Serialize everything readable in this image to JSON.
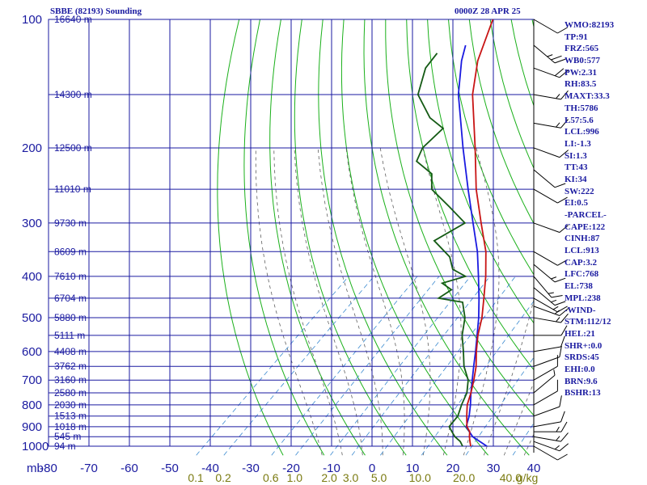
{
  "header": {
    "station_title": "SBBE (82193) Sounding",
    "datetime": "0000Z 28 APR 25"
  },
  "indices": [
    "WMO:82193",
    "TP:91",
    "FRZ:565",
    "WB0:577",
    "PW:2.31",
    "RH:83.5",
    "MAXT:33.3",
    "TH:5786",
    "L57:5.6",
    "LCL:996",
    "LI:-1.3",
    "SI:1.3",
    "TT:43",
    "KI:34",
    "SW:222",
    "EI:0.5",
    "-PARCEL-",
    "CAPE:122",
    "CINH:87",
    "LCL:913",
    "CAP:3.2",
    "LFC:768",
    "EL:738",
    "MPL:238",
    "-WIND-",
    "STM:112/12",
    "HEL:21",
    "SHR+:0.0",
    "SRDS:45",
    "EHI:0.0",
    "BRN:9.6",
    "BSHR:13"
  ],
  "colors": {
    "grid": "#1a1aa0",
    "dry_adiabat": "#1ab01a",
    "moist_adiabat": "#606060",
    "mixing_ratio": "#3a8ad0",
    "temperature": "#c81414",
    "dewpoint": "#145a14",
    "parcel": "#1a1ae0",
    "axis_text": "#1a1aa0",
    "mixing_text": "#7a7a10",
    "wind_barb": "#000000"
  },
  "chart_data": {
    "type": "skew-t",
    "pressure_ticks": [
      100,
      200,
      300,
      400,
      500,
      600,
      700,
      800,
      900,
      1000
    ],
    "pressure_unit_label": "mb",
    "temperature_ticks": [
      -80,
      -70,
      -60,
      -50,
      -40,
      -30,
      -20,
      -10,
      0,
      10,
      20,
      30,
      40
    ],
    "height_labels": [
      {
        "p": 100,
        "label": "16640 m"
      },
      {
        "p": 150,
        "label": "14300 m"
      },
      {
        "p": 200,
        "label": "12500 m"
      },
      {
        "p": 250,
        "label": "11010 m"
      },
      {
        "p": 300,
        "label": "9730 m"
      },
      {
        "p": 350,
        "label": "8609 m"
      },
      {
        "p": 400,
        "label": "7610 m"
      },
      {
        "p": 450,
        "label": "6704 m"
      },
      {
        "p": 500,
        "label": "5880 m"
      },
      {
        "p": 550,
        "label": "5111 m"
      },
      {
        "p": 600,
        "label": "4408 m"
      },
      {
        "p": 650,
        "label": "3762 m"
      },
      {
        "p": 700,
        "label": "3160 m"
      },
      {
        "p": 750,
        "label": "2580 m"
      },
      {
        "p": 800,
        "label": "2030 m"
      },
      {
        "p": 850,
        "label": "1513 m"
      },
      {
        "p": 900,
        "label": "1018 m"
      },
      {
        "p": 950,
        "label": "545 m"
      },
      {
        "p": 1000,
        "label": "94 m"
      }
    ],
    "mixing_ratio_labels": [
      {
        "w": 0.1,
        "label": "0.1"
      },
      {
        "w": 0.2,
        "label": "0.2"
      },
      {
        "w": 0.6,
        "label": "0.6"
      },
      {
        "w": 1.0,
        "label": "1.0"
      },
      {
        "w": 2.0,
        "label": "2.0"
      },
      {
        "w": 3.0,
        "label": "3.0"
      },
      {
        "w": 5.0,
        "label": "5.0"
      },
      {
        "w": 10.0,
        "label": "10.0"
      },
      {
        "w": 20.0,
        "label": "20.0"
      },
      {
        "w": 40.0,
        "label": "40.0"
      }
    ],
    "mixing_ratio_unit": "g/kg",
    "temperature_profile": [
      {
        "p": 1000,
        "t": 24.4
      },
      {
        "p": 975,
        "t": 23.0
      },
      {
        "p": 950,
        "t": 21.6
      },
      {
        "p": 925,
        "t": 20.4
      },
      {
        "p": 900,
        "t": 18.4
      },
      {
        "p": 875,
        "t": 17.0
      },
      {
        "p": 850,
        "t": 15.6
      },
      {
        "p": 800,
        "t": 12.8
      },
      {
        "p": 750,
        "t": 10.6
      },
      {
        "p": 700,
        "t": 8.0
      },
      {
        "p": 650,
        "t": 5.0
      },
      {
        "p": 600,
        "t": 1.2
      },
      {
        "p": 550,
        "t": -2.6
      },
      {
        "p": 500,
        "t": -6.2
      },
      {
        "p": 450,
        "t": -10.8
      },
      {
        "p": 400,
        "t": -16.0
      },
      {
        "p": 350,
        "t": -22.4
      },
      {
        "p": 300,
        "t": -31.0
      },
      {
        "p": 250,
        "t": -41.0
      },
      {
        "p": 200,
        "t": -52.0
      },
      {
        "p": 150,
        "t": -66.5
      },
      {
        "p": 125,
        "t": -74.0
      },
      {
        "p": 100,
        "t": -81.0
      }
    ],
    "dewpoint_profile": [
      {
        "p": 1000,
        "t": 22.4
      },
      {
        "p": 975,
        "t": 20.6
      },
      {
        "p": 950,
        "t": 18.0
      },
      {
        "p": 925,
        "t": 16.0
      },
      {
        "p": 900,
        "t": 14.0
      },
      {
        "p": 850,
        "t": 13.4
      },
      {
        "p": 800,
        "t": 11.4
      },
      {
        "p": 750,
        "t": 9.6
      },
      {
        "p": 700,
        "t": 6.6
      },
      {
        "p": 650,
        "t": 2.0
      },
      {
        "p": 600,
        "t": -2.0
      },
      {
        "p": 550,
        "t": -6.5
      },
      {
        "p": 500,
        "t": -10.4
      },
      {
        "p": 460,
        "t": -15.0
      },
      {
        "p": 450,
        "t": -22.0
      },
      {
        "p": 430,
        "t": -21.0
      },
      {
        "p": 415,
        "t": -25.0
      },
      {
        "p": 400,
        "t": -21.0
      },
      {
        "p": 385,
        "t": -26.0
      },
      {
        "p": 360,
        "t": -30.0
      },
      {
        "p": 330,
        "t": -38.0
      },
      {
        "p": 300,
        "t": -35.0
      },
      {
        "p": 275,
        "t": -43.0
      },
      {
        "p": 250,
        "t": -52.0
      },
      {
        "p": 230,
        "t": -56.0
      },
      {
        "p": 215,
        "t": -63.0
      },
      {
        "p": 200,
        "t": -65.0
      },
      {
        "p": 180,
        "t": -65.0
      },
      {
        "p": 170,
        "t": -71.0
      },
      {
        "p": 150,
        "t": -80.0
      },
      {
        "p": 130,
        "t": -85.0
      },
      {
        "p": 120,
        "t": -86.0
      }
    ],
    "parcel_profile": [
      {
        "p": 1000,
        "t": 28.4
      },
      {
        "p": 950,
        "t": 22.4
      },
      {
        "p": 900,
        "t": 18.2
      },
      {
        "p": 850,
        "t": 16.2
      },
      {
        "p": 800,
        "t": 13.6
      },
      {
        "p": 750,
        "t": 10.6
      },
      {
        "p": 700,
        "t": 7.6
      },
      {
        "p": 650,
        "t": 4.4
      },
      {
        "p": 600,
        "t": 1.0
      },
      {
        "p": 550,
        "t": -2.8
      },
      {
        "p": 500,
        "t": -7.0
      },
      {
        "p": 450,
        "t": -12.0
      },
      {
        "p": 400,
        "t": -17.8
      },
      {
        "p": 350,
        "t": -24.5
      },
      {
        "p": 300,
        "t": -33.0
      },
      {
        "p": 250,
        "t": -43.0
      },
      {
        "p": 200,
        "t": -55.0
      },
      {
        "p": 150,
        "t": -70.0
      },
      {
        "p": 125,
        "t": -78.0
      },
      {
        "p": 115,
        "t": -81.0
      }
    ],
    "wind_profile": [
      {
        "p": 1000,
        "dir": 120,
        "spd": 10
      },
      {
        "p": 975,
        "dir": 110,
        "spd": 15
      },
      {
        "p": 950,
        "dir": 100,
        "spd": 15
      },
      {
        "p": 925,
        "dir": 90,
        "spd": 15
      },
      {
        "p": 900,
        "dir": 80,
        "spd": 10
      },
      {
        "p": 850,
        "dir": 70,
        "spd": 10
      },
      {
        "p": 800,
        "dir": 60,
        "spd": 10
      },
      {
        "p": 750,
        "dir": 50,
        "spd": 5
      },
      {
        "p": 700,
        "dir": 60,
        "spd": 10
      },
      {
        "p": 650,
        "dir": 70,
        "spd": 10
      },
      {
        "p": 600,
        "dir": 80,
        "spd": 10
      },
      {
        "p": 550,
        "dir": 90,
        "spd": 10
      },
      {
        "p": 500,
        "dir": 100,
        "spd": 15
      },
      {
        "p": 470,
        "dir": 110,
        "spd": 15
      },
      {
        "p": 450,
        "dir": 120,
        "spd": 15
      },
      {
        "p": 425,
        "dir": 130,
        "spd": 15
      },
      {
        "p": 400,
        "dir": 140,
        "spd": 15
      },
      {
        "p": 375,
        "dir": 130,
        "spd": 15
      },
      {
        "p": 350,
        "dir": 120,
        "spd": 10
      },
      {
        "p": 300,
        "dir": 110,
        "spd": 10
      },
      {
        "p": 250,
        "dir": 120,
        "spd": 10
      },
      {
        "p": 225,
        "dir": 130,
        "spd": 10
      },
      {
        "p": 200,
        "dir": 110,
        "spd": 10
      },
      {
        "p": 175,
        "dir": 100,
        "spd": 15
      },
      {
        "p": 150,
        "dir": 100,
        "spd": 15
      },
      {
        "p": 130,
        "dir": 110,
        "spd": 20
      },
      {
        "p": 115,
        "dir": 130,
        "spd": 25
      },
      {
        "p": 100,
        "dir": 120,
        "spd": 10
      }
    ]
  }
}
